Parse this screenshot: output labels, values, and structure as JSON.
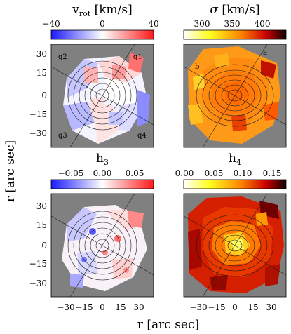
{
  "panels": [
    {
      "id": "vrot",
      "title": "v_rot [km/s]",
      "title_main": "v",
      "title_sub": "rot",
      "title_unit": " [km/s]",
      "colorbar": {
        "cmap": "bwr",
        "vmin": -40,
        "vmax": 40,
        "ticks": [
          "−40",
          "0",
          "40"
        ],
        "tick_values": [
          -40,
          0,
          40
        ]
      },
      "labels": [
        "q1",
        "q2",
        "q3",
        "q4"
      ]
    },
    {
      "id": "sigma",
      "title": "σ [km/s]",
      "title_main": "σ",
      "title_sub": "",
      "title_unit": " [km/s]",
      "colorbar": {
        "cmap": "hot_r",
        "vmin": 270,
        "vmax": 440,
        "ticks": [
          "300",
          "350",
          "400"
        ],
        "tick_values": [
          300,
          350,
          400
        ]
      },
      "labels": [
        "a",
        "b"
      ]
    },
    {
      "id": "h3",
      "title": "h3",
      "title_main": "h",
      "title_sub": "3",
      "title_unit": "",
      "colorbar": {
        "cmap": "bwr",
        "vmin": -0.08,
        "vmax": 0.08,
        "ticks": [
          "−0.05",
          "0.00",
          "0.05"
        ],
        "tick_values": [
          -0.05,
          0,
          0.05
        ]
      },
      "labels": []
    },
    {
      "id": "h4",
      "title": "h4",
      "title_main": "h",
      "title_sub": "4",
      "title_unit": "",
      "colorbar": {
        "cmap": "hot_r",
        "vmin": 0,
        "vmax": 0.175,
        "ticks": [
          "0.00",
          "0.05",
          "0.10",
          "0.15"
        ],
        "tick_values": [
          0,
          0.05,
          0.1,
          0.15
        ]
      },
      "labels": []
    }
  ],
  "axes": {
    "xlabel": "r [arc sec]",
    "ylabel": "r [arc sec]",
    "range": [
      -42,
      42
    ],
    "top_y_ticks": [
      "30",
      "15",
      "0",
      "−15",
      "−30"
    ],
    "bottom_y_ticks": [
      "30",
      "15",
      "0",
      "−15",
      "−30"
    ],
    "x_ticks": [
      "−30",
      "−15",
      "0",
      "15",
      "30"
    ],
    "tick_values": [
      30,
      15,
      0,
      -15,
      -30
    ],
    "x_tick_values": [
      -30,
      -15,
      0,
      15,
      30
    ]
  },
  "chart_data": [
    {
      "type": "heatmap",
      "title": "v_rot [km/s]",
      "xlabel": "",
      "ylabel": "r [arc sec]",
      "xlim": [
        -42,
        42
      ],
      "ylim": [
        -42,
        42
      ],
      "colorbar_range": [
        -40,
        40
      ],
      "colormap": "blue-white-red",
      "background": "#808080",
      "region_labels": [
        "q1",
        "q2",
        "q3",
        "q4"
      ],
      "pattern": "rotation field, approx -15 to +20 km/s"
    },
    {
      "type": "heatmap",
      "title": "σ [km/s]",
      "xlabel": "",
      "ylabel": "",
      "xlim": [
        -42,
        42
      ],
      "ylim": [
        -42,
        42
      ],
      "colorbar_range": [
        270,
        440
      ],
      "colormap": "hot (reversed)",
      "background": "#808080",
      "region_labels": [
        "a",
        "b"
      ],
      "pattern": "dispersion peaks ~380 km/s at centre, ~330 km/s at edge"
    },
    {
      "type": "heatmap",
      "title": "h3",
      "xlabel": "r [arc sec]",
      "ylabel": "r [arc sec]",
      "xlim": [
        -42,
        42
      ],
      "ylim": [
        -42,
        42
      ],
      "colorbar_range": [
        -0.08,
        0.08
      ],
      "colormap": "blue-white-red",
      "background": "#808080"
    },
    {
      "type": "heatmap",
      "title": "h4",
      "xlabel": "r [arc sec]",
      "ylabel": "",
      "xlim": [
        -42,
        42
      ],
      "ylim": [
        -42,
        42
      ],
      "colorbar_range": [
        0,
        0.175
      ],
      "colormap": "hot (reversed)",
      "background": "#808080",
      "pattern": "h4 mostly 0.10-0.15 in outer bins, lower ~0.05 near centre"
    }
  ],
  "colors": {
    "background": "#808080",
    "contour": "#1a1a1a",
    "lines": "#222222"
  }
}
